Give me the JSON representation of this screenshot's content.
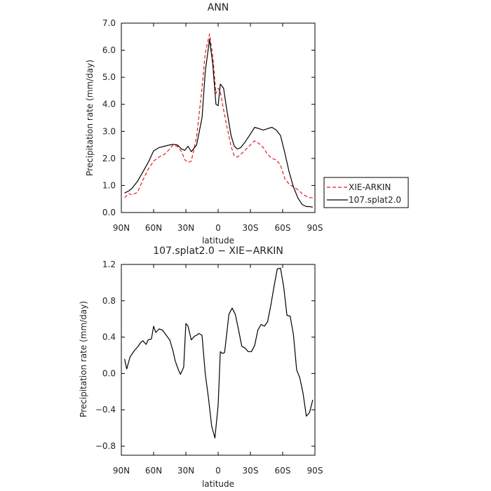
{
  "chart_data": [
    {
      "type": "line",
      "title": "ANN",
      "xlabel": "latitude",
      "ylabel": "Precipitation rate (mm/day)",
      "xlim": [
        90,
        -90
      ],
      "ylim": [
        0,
        7
      ],
      "x_tick_values": [
        90,
        60,
        30,
        0,
        -30,
        -60,
        -90
      ],
      "x_tick_labels": [
        "90N",
        "60N",
        "30N",
        "0",
        "30S",
        "60S",
        "90S"
      ],
      "y_tick_values": [
        0,
        1,
        2,
        3,
        4,
        5,
        6,
        7
      ],
      "y_tick_labels": [
        "0.0",
        "1.0",
        "2.0",
        "3.0",
        "4.0",
        "5.0",
        "6.0",
        "7.0"
      ],
      "legend_position": "right, outside plot, bottom",
      "series": [
        {
          "name": "XIE-ARKIN",
          "color": "#e41a1c",
          "dash": "dashed",
          "x": [
            87,
            83,
            80,
            75,
            70,
            65,
            60,
            55,
            50,
            45,
            42,
            38,
            34,
            31,
            28,
            25,
            20,
            15,
            12,
            8,
            5,
            2,
            0,
            -2,
            -5,
            -8,
            -12,
            -15,
            -18,
            -21,
            -25,
            -30,
            -34,
            -38,
            -42,
            -46,
            -50,
            -54,
            -58,
            -62,
            -66,
            -70,
            -74,
            -78,
            -82,
            -85,
            -88
          ],
          "y": [
            0.55,
            0.7,
            0.65,
            0.75,
            1.2,
            1.6,
            1.9,
            2.05,
            2.15,
            2.35,
            2.5,
            2.45,
            2.25,
            1.95,
            1.85,
            1.9,
            2.8,
            4.6,
            5.9,
            6.6,
            5.8,
            4.4,
            4.6,
            4.45,
            3.8,
            3.2,
            2.45,
            2.1,
            2.05,
            2.15,
            2.3,
            2.5,
            2.65,
            2.55,
            2.4,
            2.15,
            2.0,
            1.95,
            1.75,
            1.25,
            1.05,
            0.95,
            0.85,
            0.7,
            0.6,
            0.55,
            0.55
          ]
        },
        {
          "name": "107.splat2.0",
          "color": "#000000",
          "dash": "solid",
          "x": [
            87,
            83,
            80,
            75,
            70,
            65,
            60,
            55,
            50,
            45,
            42,
            38,
            34,
            31,
            28,
            25,
            20,
            15,
            12,
            8,
            5,
            2,
            0,
            -2,
            -5,
            -8,
            -12,
            -15,
            -18,
            -21,
            -25,
            -30,
            -34,
            -38,
            -42,
            -46,
            -50,
            -54,
            -58,
            -62,
            -66,
            -70,
            -74,
            -78,
            -82,
            -85,
            -88
          ],
          "y": [
            0.72,
            0.8,
            0.9,
            1.15,
            1.5,
            1.85,
            2.28,
            2.4,
            2.45,
            2.5,
            2.52,
            2.5,
            2.35,
            2.3,
            2.45,
            2.25,
            2.5,
            3.5,
            5.2,
            6.4,
            5.5,
            4.0,
            3.95,
            4.75,
            4.6,
            3.8,
            2.85,
            2.45,
            2.35,
            2.4,
            2.6,
            2.9,
            3.15,
            3.1,
            3.05,
            3.1,
            3.15,
            3.05,
            2.85,
            2.2,
            1.5,
            0.95,
            0.55,
            0.3,
            0.22,
            0.22,
            0.2
          ]
        }
      ]
    },
    {
      "type": "line",
      "title": "107.splat2.0 − XIE−ARKIN",
      "xlabel": "latitude",
      "ylabel": "Precipitation rate (mm/day)",
      "xlim": [
        90,
        -90
      ],
      "ylim": [
        -0.9,
        1.2
      ],
      "x_tick_values": [
        90,
        60,
        30,
        0,
        -30,
        -60,
        -90
      ],
      "x_tick_labels": [
        "90N",
        "60N",
        "30N",
        "0",
        "30S",
        "60S",
        "90S"
      ],
      "y_tick_values": [
        -0.8,
        -0.4,
        0.0,
        0.4,
        0.8,
        1.2
      ],
      "y_tick_labels": [
        "−0.8",
        "−0.4",
        "0.0",
        "0.4",
        "0.8",
        "1.2"
      ],
      "series": [
        {
          "name": "",
          "color": "#000000",
          "dash": "solid",
          "x": [
            87,
            85,
            82,
            78,
            75,
            72,
            70,
            67,
            65,
            62,
            60,
            58,
            55,
            52,
            50,
            47,
            45,
            42,
            40,
            37,
            35,
            32,
            30,
            28,
            25,
            22,
            20,
            18,
            15,
            12,
            9,
            6,
            3,
            0,
            -2,
            -4,
            -6,
            -8,
            -10,
            -13,
            -16,
            -19,
            -22,
            -25,
            -28,
            -31,
            -34,
            -37,
            -40,
            -43,
            -46,
            -49,
            -52,
            -55,
            -58,
            -61,
            -64,
            -67,
            -70,
            -73,
            -76,
            -79,
            -82,
            -85,
            -88
          ],
          "y": [
            0.16,
            0.05,
            0.18,
            0.25,
            0.29,
            0.34,
            0.36,
            0.32,
            0.37,
            0.38,
            0.52,
            0.45,
            0.49,
            0.48,
            0.45,
            0.4,
            0.37,
            0.25,
            0.14,
            0.04,
            -0.01,
            0.07,
            0.55,
            0.52,
            0.37,
            0.41,
            0.42,
            0.44,
            0.42,
            0.0,
            -0.27,
            -0.58,
            -0.71,
            -0.35,
            0.24,
            0.22,
            0.23,
            0.44,
            0.65,
            0.72,
            0.65,
            0.48,
            0.3,
            0.28,
            0.24,
            0.24,
            0.31,
            0.48,
            0.54,
            0.52,
            0.57,
            0.75,
            0.96,
            1.15,
            1.16,
            0.95,
            0.64,
            0.63,
            0.43,
            0.04,
            -0.05,
            -0.22,
            -0.47,
            -0.43,
            -0.29
          ]
        }
      ]
    }
  ]
}
